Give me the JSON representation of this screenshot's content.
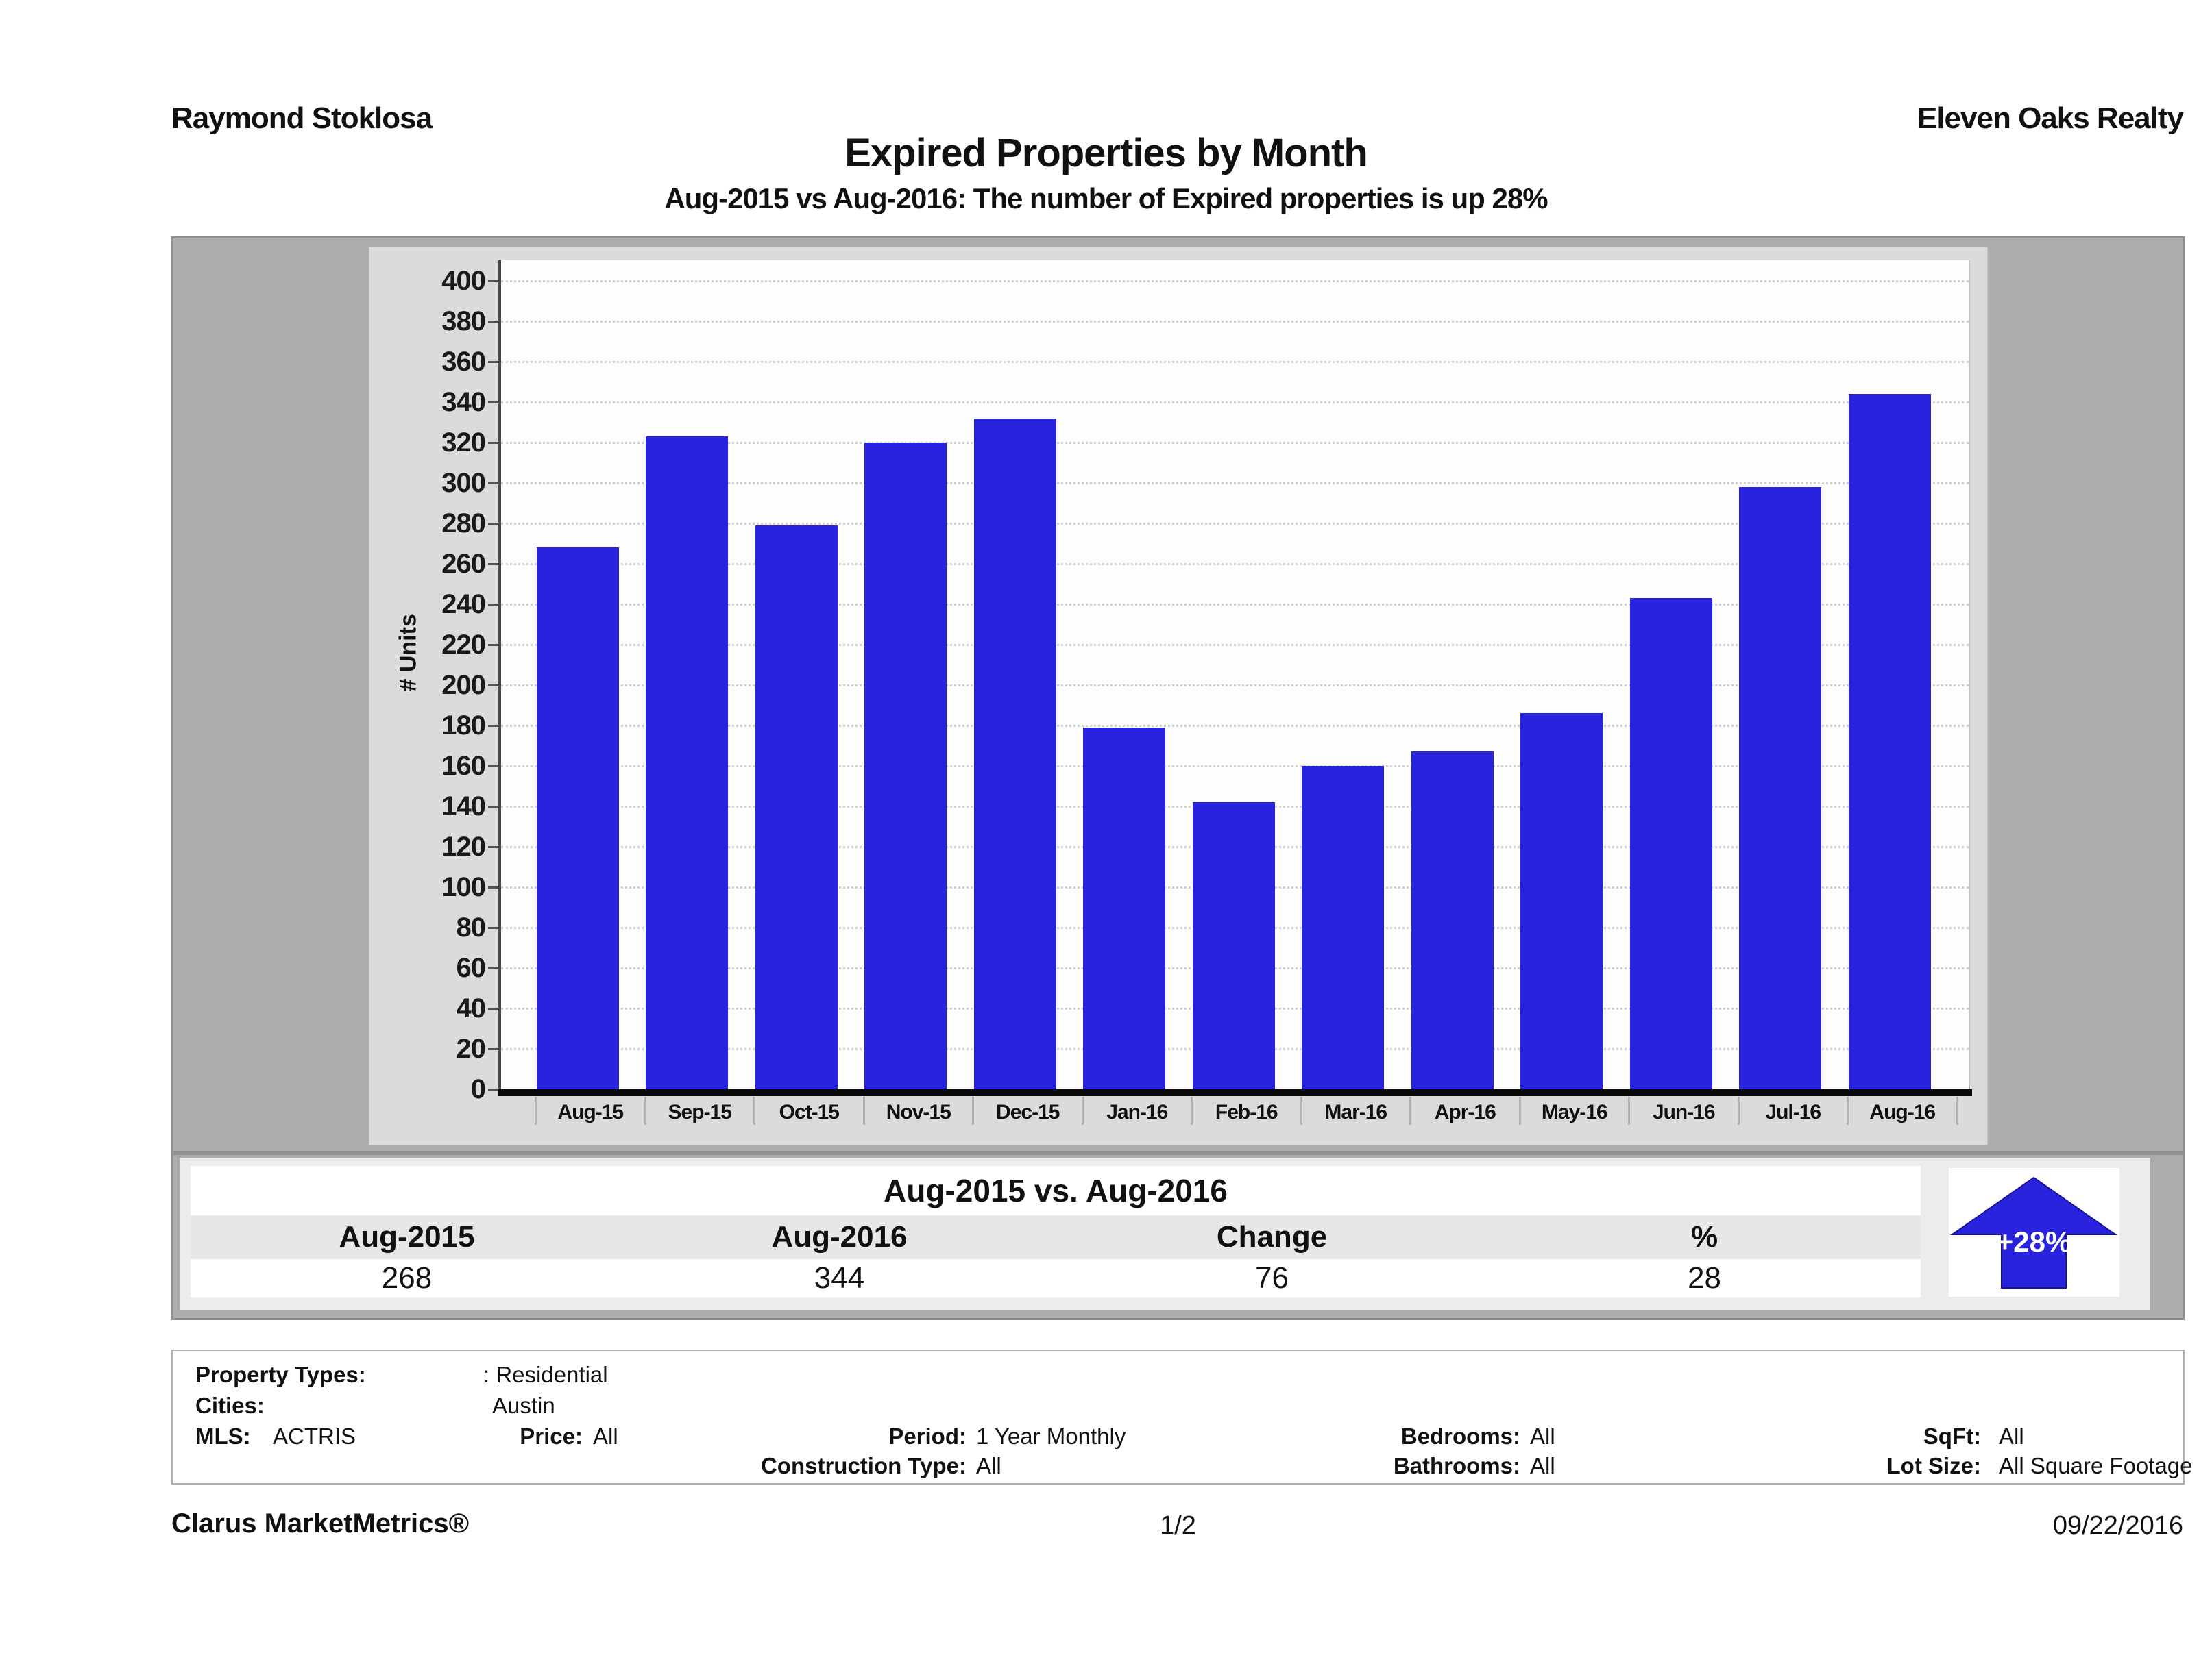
{
  "header": {
    "agent": "Raymond Stoklosa",
    "company": "Eleven Oaks Realty"
  },
  "title": "Expired Properties by Month",
  "subtitle": "Aug-2015 vs Aug-2016: The number of Expired  properties is up 28%",
  "chart_data": {
    "type": "bar",
    "categories": [
      "Aug-15",
      "Sep-15",
      "Oct-15",
      "Nov-15",
      "Dec-15",
      "Jan-16",
      "Feb-16",
      "Mar-16",
      "Apr-16",
      "May-16",
      "Jun-16",
      "Jul-16",
      "Aug-16"
    ],
    "values": [
      268,
      323,
      279,
      320,
      332,
      179,
      142,
      160,
      167,
      186,
      243,
      298,
      344
    ],
    "title": "Expired Properties by Month",
    "xlabel": "",
    "ylabel": "# Units",
    "ylim": [
      0,
      400
    ],
    "ytick_step": 20,
    "grid": "horizontal-dotted",
    "legend": "none",
    "bar_color": "#2a23dd"
  },
  "comparison": {
    "title": "Aug-2015 vs. Aug-2016",
    "columns": [
      "Aug-2015",
      "Aug-2016",
      "Change",
      "%"
    ],
    "values": [
      "268",
      "344",
      "76",
      "28"
    ],
    "badge": {
      "label": "+28%",
      "direction": "up",
      "color": "#2a23dd"
    }
  },
  "filters": {
    "property_types": {
      "label": "Property Types:",
      "value": ": Residential"
    },
    "cities": {
      "label": "Cities:",
      "value": "Austin"
    },
    "mls": {
      "label": "MLS:",
      "value": "ACTRIS"
    },
    "price": {
      "label": "Price:",
      "value": "All"
    },
    "period": {
      "label": "Period:",
      "value": "1 Year Monthly"
    },
    "construction_type": {
      "label": "Construction Type:",
      "value": "All"
    },
    "bedrooms": {
      "label": "Bedrooms:",
      "value": "All"
    },
    "bathrooms": {
      "label": "Bathrooms:",
      "value": "All"
    },
    "sqft": {
      "label": "SqFt:",
      "value": "All"
    },
    "lot_size": {
      "label": "Lot Size:",
      "value": "All Square Footage"
    }
  },
  "footer": {
    "brand": "Clarus MarketMetrics®",
    "page": "1/2",
    "date": "09/22/2016"
  }
}
